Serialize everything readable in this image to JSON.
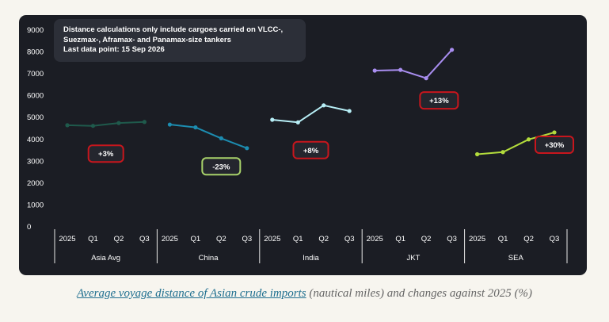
{
  "colors": {
    "card_bg": "#1b1d24",
    "positive_badge_border": "#c8161d",
    "negative_badge_border": "#a8d26a",
    "series": {
      "Asia Avg": "#1f5a4c",
      "China": "#1c8cb0",
      "India": "#b7eef6",
      "JKT": "#a98ef0",
      "SEA": "#b3dc3c"
    }
  },
  "note": {
    "lines": [
      "Distance calculations only include cargoes carried on VLCC-,",
      "Suezmax-, Aframax- and Panamax-size tankers",
      "Last data point: 15 Sep 2026"
    ]
  },
  "caption": {
    "link_text": "Average voyage distance of Asian crude imports",
    "rest_text": " (nautical miles) and changes against 2025 (%)"
  },
  "chart_data": {
    "type": "line",
    "ylim": [
      0,
      9000
    ],
    "yticks": [
      0,
      1000,
      2000,
      3000,
      4000,
      5000,
      6000,
      7000,
      8000,
      9000
    ],
    "grid": false,
    "groups": [
      {
        "name": "Asia Avg",
        "categories": [
          "2025",
          "Q1",
          "Q2",
          "Q3"
        ],
        "values": [
          4650,
          4620,
          4750,
          4800
        ],
        "change": "+3%",
        "change_value": 3
      },
      {
        "name": "China",
        "categories": [
          "2025",
          "Q1",
          "Q2",
          "Q3"
        ],
        "values": [
          4680,
          4550,
          4050,
          3600
        ],
        "change": "-23%",
        "change_value": -23
      },
      {
        "name": "India",
        "categories": [
          "2025",
          "Q1",
          "Q2",
          "Q3"
        ],
        "values": [
          4900,
          4780,
          5560,
          5300
        ],
        "change": "+8%",
        "change_value": 8
      },
      {
        "name": "JKT",
        "categories": [
          "2025",
          "Q1",
          "Q2",
          "Q3"
        ],
        "values": [
          7150,
          7180,
          6800,
          8100
        ],
        "change": "+13%",
        "change_value": 13
      },
      {
        "name": "SEA",
        "categories": [
          "2025",
          "Q1",
          "Q2",
          "Q3"
        ],
        "values": [
          3320,
          3420,
          4000,
          4320
        ],
        "change": "+30%",
        "change_value": 30
      }
    ]
  }
}
